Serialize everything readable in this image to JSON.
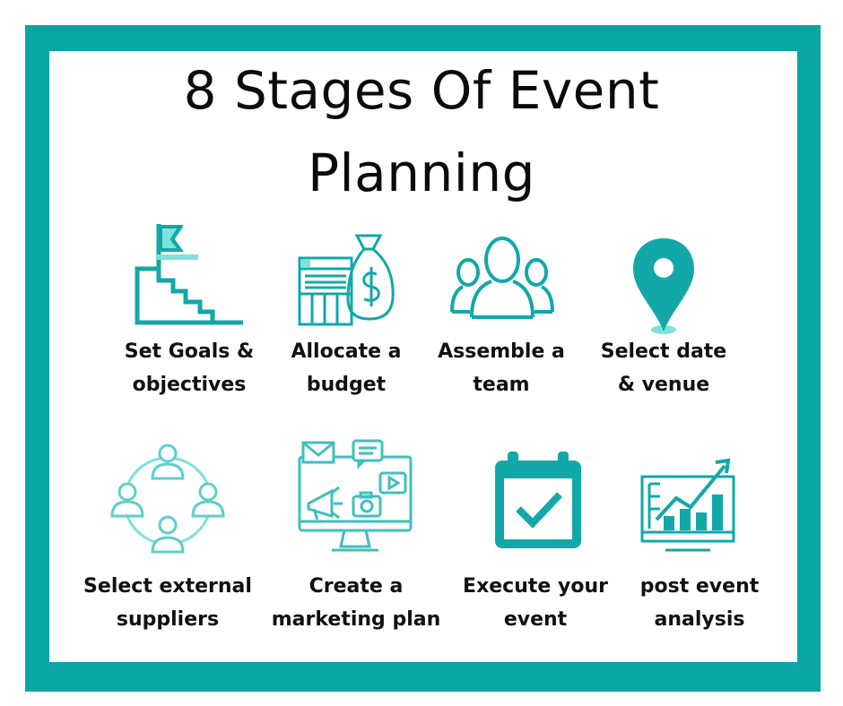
{
  "title": {
    "line1": "8 Stages Of Event",
    "line2": "Planning"
  },
  "colors": {
    "frame": "#0aa5a5",
    "icon_teal": "#12a8a8",
    "icon_light": "#7fe0dc",
    "text": "#111111"
  },
  "stages": [
    {
      "icon": "flag-stairs-icon",
      "line1": "Set Goals &",
      "line2": "objectives"
    },
    {
      "icon": "money-bag-icon",
      "line1": "Allocate a",
      "line2": "budget"
    },
    {
      "icon": "people-group-icon",
      "line1": "Assemble a",
      "line2": "team"
    },
    {
      "icon": "map-pin-icon",
      "line1": "Select date",
      "line2": "& venue"
    },
    {
      "icon": "network-people-icon",
      "line1": "Select external",
      "line2": "suppliers"
    },
    {
      "icon": "marketing-monitor-icon",
      "line1": "Create a",
      "line2": "marketing plan"
    },
    {
      "icon": "calendar-check-icon",
      "line1": "Execute your",
      "line2": "event"
    },
    {
      "icon": "analytics-chart-icon",
      "line1": "post event",
      "line2": "analysis"
    }
  ]
}
